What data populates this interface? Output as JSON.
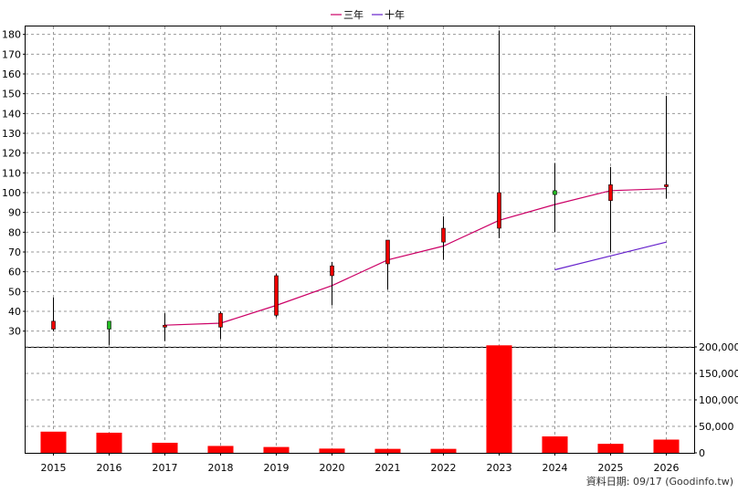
{
  "chart_data": {
    "type": "candlestick-with-volume",
    "years": [
      "2015",
      "2016",
      "2017",
      "2018",
      "2019",
      "2020",
      "2021",
      "2022",
      "2023",
      "2024",
      "2025",
      "2026"
    ],
    "legend": [
      {
        "label": "三年",
        "color": "#cc0066"
      },
      {
        "label": "十年",
        "color": "#6622cc"
      }
    ],
    "price_axis": {
      "ylim": [
        22,
        184
      ],
      "ticks": [
        30,
        40,
        50,
        60,
        70,
        80,
        90,
        100,
        110,
        120,
        130,
        140,
        150,
        160,
        170,
        180
      ]
    },
    "volume_axis": {
      "ylim": [
        0,
        200000
      ],
      "ticks": [
        0,
        50000,
        100000,
        150000,
        200000
      ],
      "tick_labels": [
        "0",
        "50,000",
        "100,000",
        "150,000",
        "200,000"
      ]
    },
    "candles": [
      {
        "year": "2015",
        "open": 31,
        "close": 35,
        "high": 47,
        "low": 30,
        "color": "#ee0000"
      },
      {
        "year": "2016",
        "open": 35,
        "close": 31,
        "high": 35,
        "low": 23,
        "color": "#22bb22"
      },
      {
        "year": "2017",
        "open": 32,
        "close": 33,
        "high": 39,
        "low": 25,
        "color": "#ee0000"
      },
      {
        "year": "2018",
        "open": 32,
        "close": 39,
        "high": 40,
        "low": 26,
        "color": "#ee0000"
      },
      {
        "year": "2019",
        "open": 38,
        "close": 58,
        "high": 59,
        "low": 37,
        "color": "#ee0000"
      },
      {
        "year": "2020",
        "open": 58,
        "close": 63,
        "high": 65,
        "low": 43,
        "color": "#ee0000"
      },
      {
        "year": "2021",
        "open": 64,
        "close": 76,
        "high": 76,
        "low": 51,
        "color": "#ee0000"
      },
      {
        "year": "2022",
        "open": 75,
        "close": 82,
        "high": 88,
        "low": 66,
        "color": "#ee0000"
      },
      {
        "year": "2023",
        "open": 82,
        "close": 100,
        "high": 182,
        "low": 77,
        "color": "#ee0000"
      },
      {
        "year": "2024",
        "open": 101,
        "close": 99,
        "high": 115,
        "low": 80,
        "color": "#22bb22"
      },
      {
        "year": "2025",
        "open": 96,
        "close": 104,
        "high": 113,
        "low": 70,
        "color": "#ee0000"
      },
      {
        "year": "2026",
        "open": 103,
        "close": 104,
        "high": 149,
        "low": 97,
        "color": "#ee0000"
      }
    ],
    "series": [
      {
        "name": "三年",
        "color": "#cc0066",
        "x": [
          "2017",
          "2018",
          "2019",
          "2020",
          "2021",
          "2022",
          "2023",
          "2024",
          "2025",
          "2026"
        ],
        "values": [
          33,
          34,
          43,
          53,
          66,
          73,
          86,
          94,
          101,
          102
        ]
      },
      {
        "name": "十年",
        "color": "#6622cc",
        "x": [
          "2024",
          "2025",
          "2026"
        ],
        "values": [
          61,
          68,
          75
        ]
      }
    ],
    "volume": [
      40000,
      38000,
      19000,
      13000,
      11000,
      8000,
      7500,
      7500,
      203000,
      31000,
      17000,
      25000
    ]
  },
  "footer": {
    "source_text": "資料日期: 09/17  (Goodinfo.tw)"
  }
}
